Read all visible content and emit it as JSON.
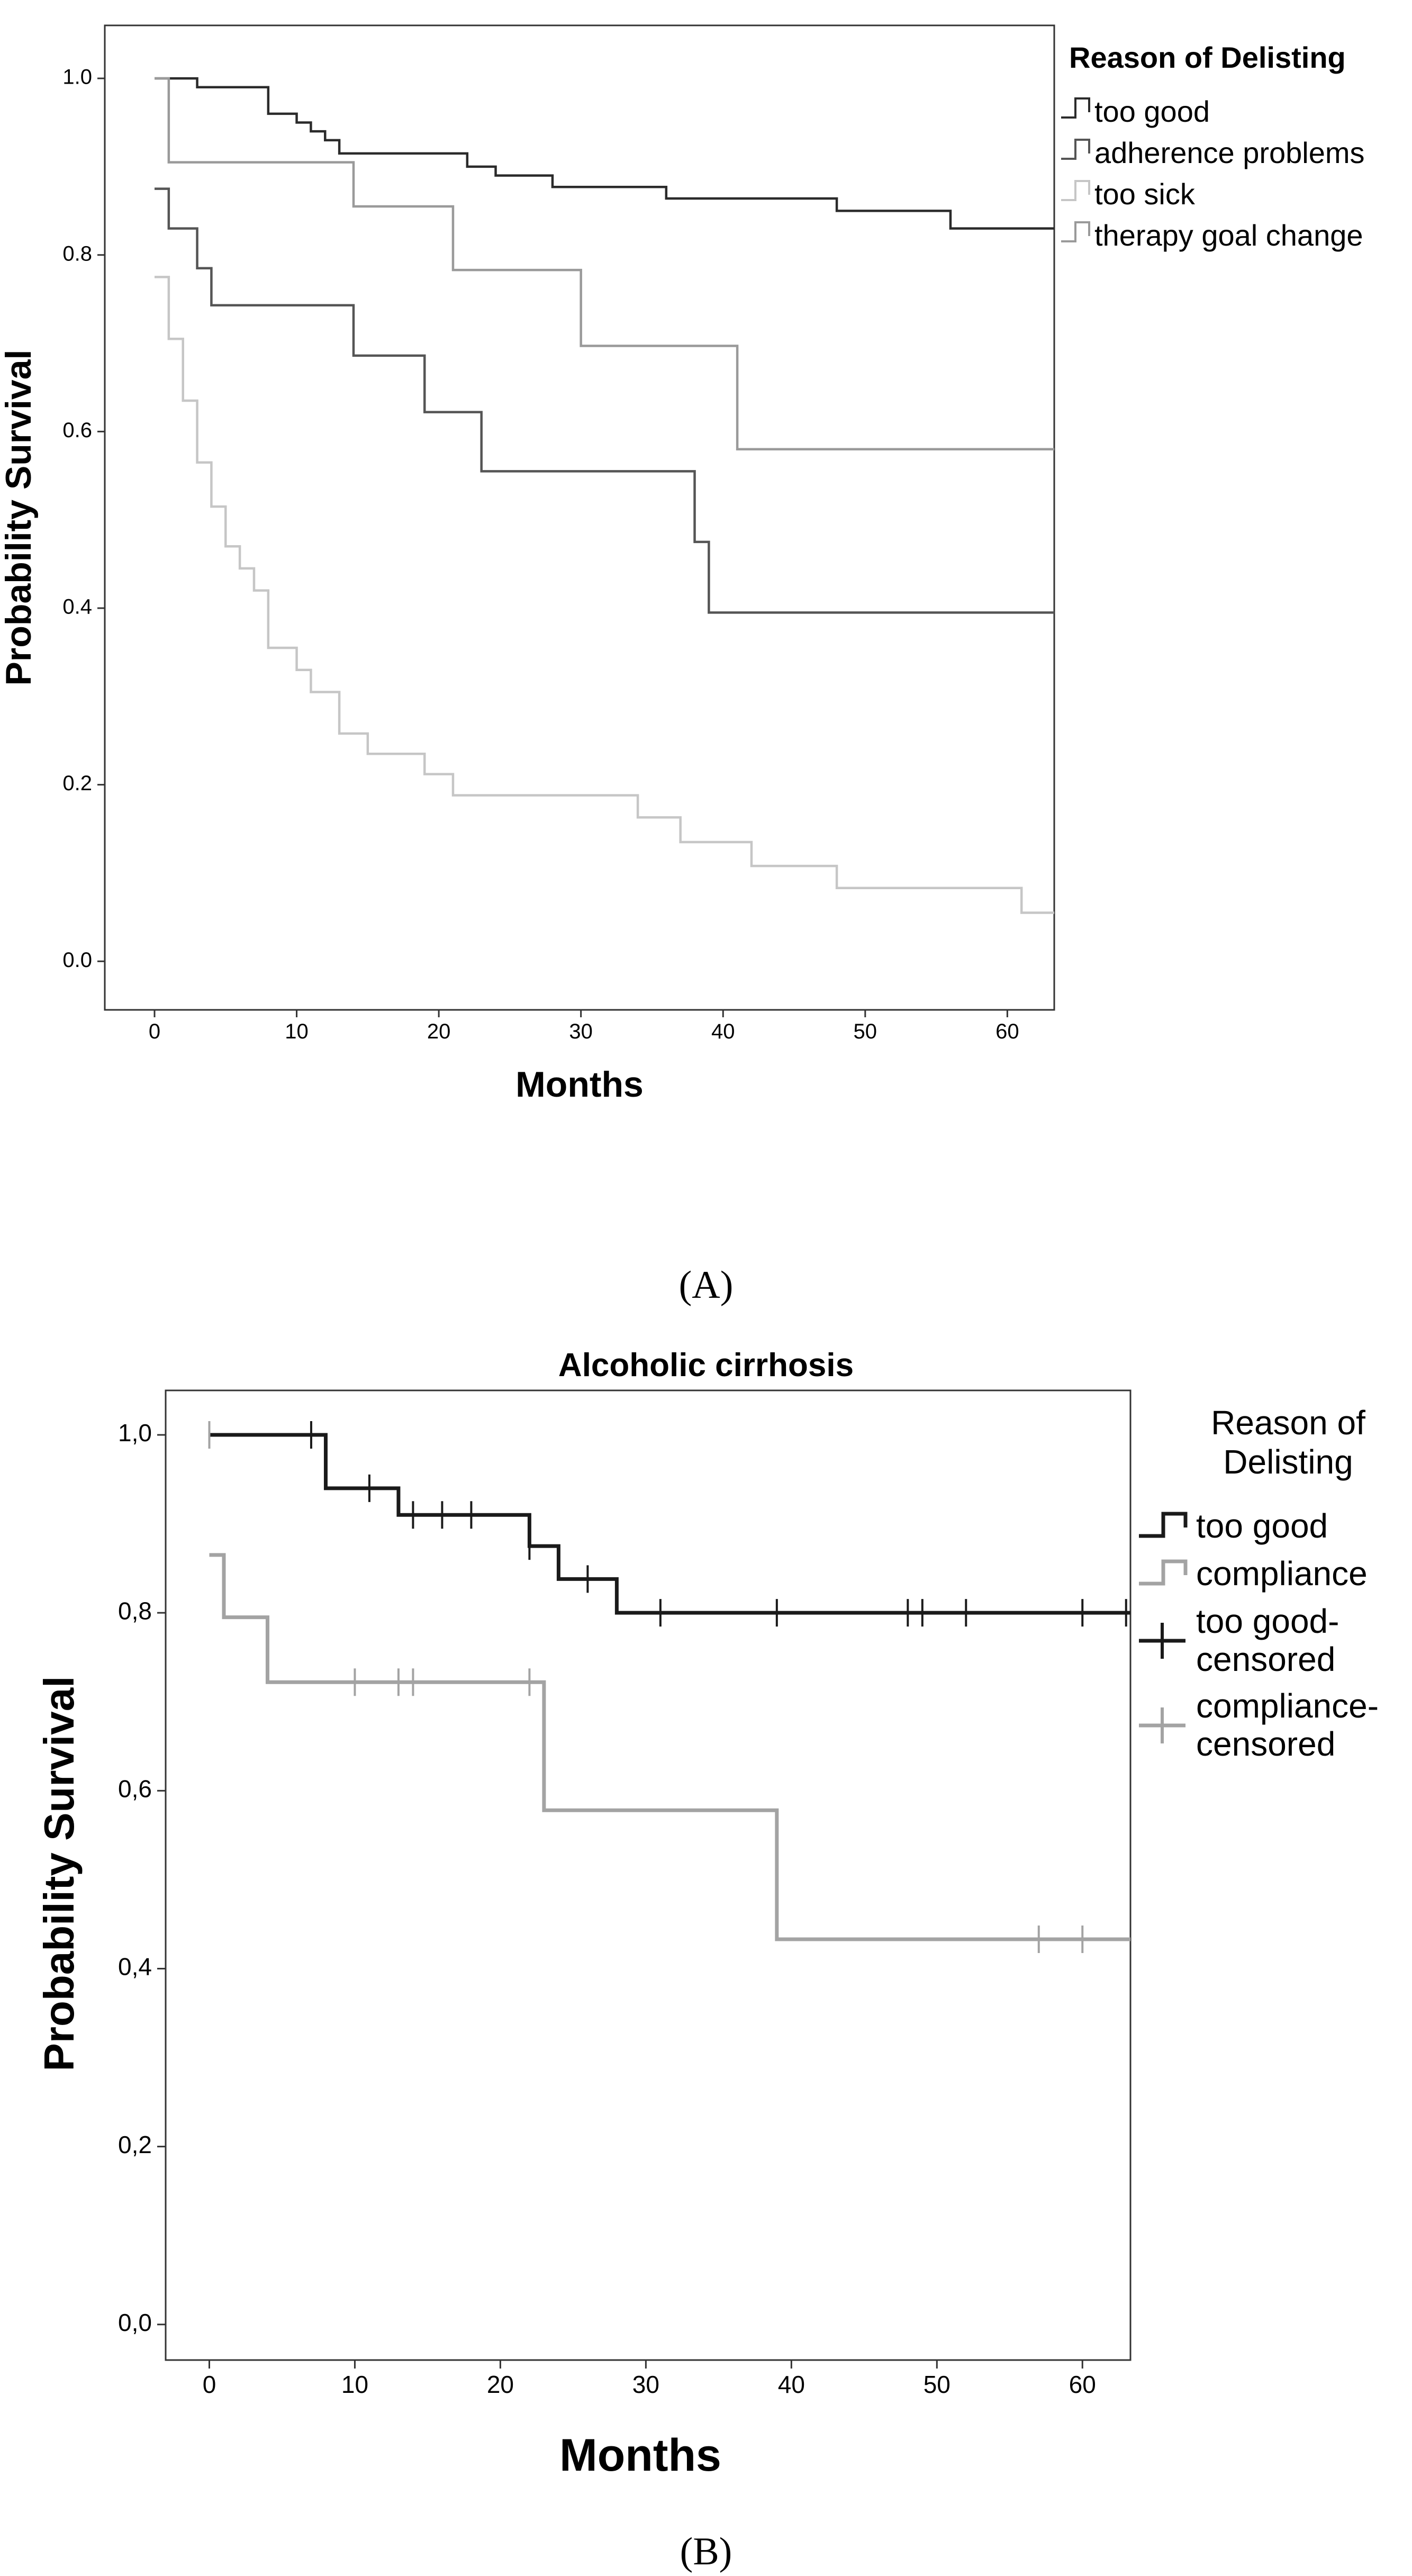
{
  "chart_data": [
    {
      "type": "line",
      "panel_label": "(A)",
      "title": "",
      "xlabel": "Months",
      "ylabel": "Probability Survival",
      "xlim": [
        -3.5,
        63.3
      ],
      "ylim": [
        -0.055,
        1.06
      ],
      "xticks": [
        "0",
        "10",
        "20",
        "30",
        "40",
        "50",
        "60"
      ],
      "yticks": [
        "0.0",
        "0.2",
        "0.4",
        "0.6",
        "0.8",
        "1.0"
      ],
      "legend_title": "Reason of Delisting",
      "legend_position": "right",
      "series": [
        {
          "name": "too good",
          "color": "#2b2b2b",
          "x": [
            0,
            3,
            8,
            10,
            11,
            12,
            13,
            22,
            24,
            28,
            36,
            48,
            56,
            63.3
          ],
          "y": [
            1.0,
            0.99,
            0.96,
            0.95,
            0.94,
            0.93,
            0.915,
            0.9,
            0.89,
            0.877,
            0.864,
            0.85,
            0.83,
            0.83
          ]
        },
        {
          "name": "adherence problems",
          "color": "#555555",
          "x": [
            0,
            1,
            3,
            4,
            14,
            19,
            23,
            38,
            39,
            63.3
          ],
          "y": [
            0.875,
            0.83,
            0.785,
            0.743,
            0.686,
            0.622,
            0.555,
            0.475,
            0.395,
            0.395
          ]
        },
        {
          "name": "too sick",
          "color": "#c6c6c6",
          "x": [
            0,
            1,
            2,
            3,
            4,
            5,
            6,
            7,
            8,
            10,
            11,
            13,
            15,
            19,
            21,
            34,
            37,
            42,
            48,
            61,
            63.3
          ],
          "y": [
            0.775,
            0.705,
            0.635,
            0.565,
            0.515,
            0.47,
            0.445,
            0.42,
            0.355,
            0.33,
            0.305,
            0.258,
            0.235,
            0.212,
            0.188,
            0.163,
            0.135,
            0.108,
            0.083,
            0.055,
            0.055
          ]
        },
        {
          "name": "therapy goal change",
          "color": "#9a9a9a",
          "x": [
            0,
            1,
            14,
            21,
            30,
            41,
            63.3
          ],
          "y": [
            1.0,
            0.905,
            0.855,
            0.783,
            0.697,
            0.58,
            0.58
          ]
        }
      ]
    },
    {
      "type": "line",
      "panel_label": "(B)",
      "title": "Alcoholic cirrhosis",
      "xlabel": "Months",
      "ylabel": "Probability Survival",
      "xlim": [
        -3.0,
        63.3
      ],
      "ylim": [
        -0.04,
        1.05
      ],
      "xticks": [
        "0",
        "10",
        "20",
        "30",
        "40",
        "50",
        "60"
      ],
      "yticks": [
        "0,0",
        "0,2",
        "0,4",
        "0,6",
        "0,8",
        "1,0"
      ],
      "legend_title_lines": [
        "Reason of",
        "Delisting"
      ],
      "legend_position": "right",
      "legend_entries": [
        {
          "lines": [
            "too good"
          ],
          "kind": "step",
          "color": "#1a1a1a"
        },
        {
          "lines": [
            "compliance"
          ],
          "kind": "step",
          "color": "#a3a3a3"
        },
        {
          "lines": [
            "too good-",
            "censored"
          ],
          "kind": "cross",
          "color": "#1a1a1a"
        },
        {
          "lines": [
            "compliance-",
            "censored"
          ],
          "kind": "cross",
          "color": "#a3a3a3"
        }
      ],
      "series": [
        {
          "name": "too good",
          "color": "#1a1a1a",
          "x": [
            0,
            8,
            13,
            22,
            24,
            28,
            63.3
          ],
          "y": [
            1.0,
            0.94,
            0.91,
            0.875,
            0.838,
            0.8,
            0.8
          ],
          "censored_x": [
            7,
            11,
            14,
            16,
            18,
            22,
            26,
            31,
            39,
            48,
            49,
            52,
            60,
            63
          ],
          "censored_y": [
            1.0,
            0.94,
            0.91,
            0.91,
            0.91,
            0.875,
            0.838,
            0.8,
            0.8,
            0.8,
            0.8,
            0.8,
            0.8,
            0.8
          ]
        },
        {
          "name": "compliance",
          "color": "#a3a3a3",
          "x": [
            0,
            1,
            4,
            23,
            39,
            63.3
          ],
          "y": [
            0.865,
            0.795,
            0.722,
            0.578,
            0.433,
            0.433
          ],
          "censored_x": [
            0,
            10,
            13,
            14,
            22,
            57,
            60
          ],
          "censored_y": [
            1.0,
            0.722,
            0.722,
            0.722,
            0.722,
            0.433,
            0.433
          ]
        }
      ]
    }
  ]
}
